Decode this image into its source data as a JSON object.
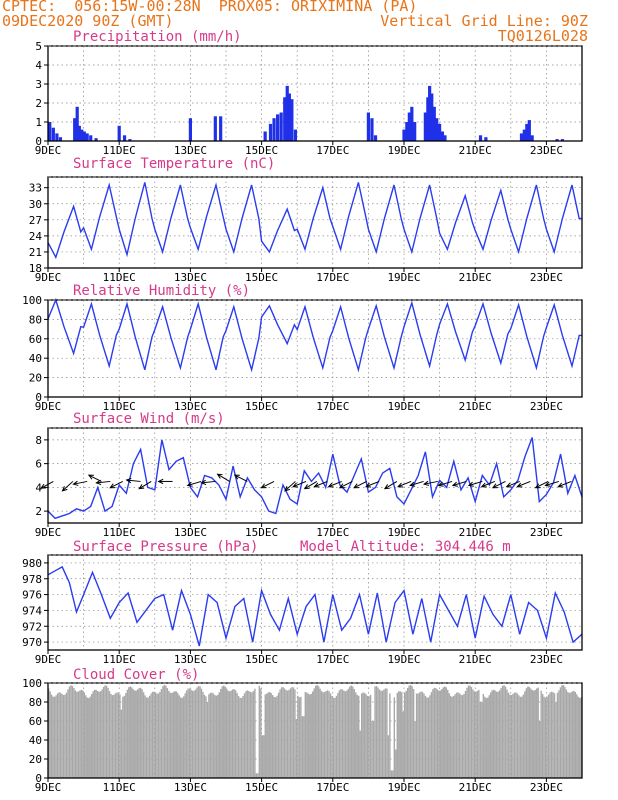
{
  "header": {
    "left_line1": "CPTEC:  056:15W-00:28N  PROX05: ORIXIMINA (PA)",
    "left_line2": "09DEC2020 90Z (GMT)",
    "right_line2": "Vertical Grid Line: 90Z",
    "right_line3": "TQ0126L028"
  },
  "colors": {
    "header": "#e8741a",
    "title": "#d63a8a",
    "line": "#2a3cf0",
    "bar": "#2030e8",
    "cloud": "#a8a8a8"
  },
  "x_ticks": [
    "9DEC",
    "11DEC",
    "13DEC",
    "15DEC",
    "17DEC",
    "19DEC",
    "21DEC",
    "23DEC"
  ],
  "chart_data": [
    {
      "type": "bar",
      "title": "Precipitation (mm/h)",
      "unit": "mm/h",
      "xlim": [
        9,
        24
      ],
      "ylim": [
        0,
        5
      ],
      "yticks": [
        "0",
        "1",
        "2",
        "3",
        "4",
        "5"
      ],
      "x": [
        9.05,
        9.15,
        9.25,
        9.35,
        9.75,
        9.82,
        9.88,
        9.95,
        10.02,
        10.1,
        10.2,
        10.35,
        11.0,
        11.15,
        11.3,
        13.0,
        13.7,
        13.85,
        15.1,
        15.25,
        15.35,
        15.45,
        15.55,
        15.65,
        15.72,
        15.78,
        15.85,
        15.95,
        18.0,
        18.1,
        18.2,
        19.0,
        19.08,
        19.15,
        19.22,
        19.3,
        19.6,
        19.67,
        19.72,
        19.78,
        19.85,
        19.92,
        20.0,
        20.08,
        20.15,
        21.15,
        21.3,
        22.3,
        22.38,
        22.45,
        22.52,
        22.6,
        23.3,
        23.45
      ],
      "values": [
        1.0,
        0.7,
        0.4,
        0.2,
        1.2,
        1.8,
        0.8,
        0.6,
        0.5,
        0.4,
        0.3,
        0.15,
        0.8,
        0.3,
        0.1,
        1.2,
        1.3,
        1.3,
        0.5,
        0.9,
        1.2,
        1.4,
        1.5,
        2.3,
        2.9,
        2.5,
        2.2,
        0.6,
        1.5,
        1.2,
        0.3,
        0.6,
        1.0,
        1.5,
        1.8,
        1.0,
        1.5,
        2.3,
        2.9,
        2.5,
        1.8,
        1.2,
        0.9,
        0.5,
        0.3,
        0.3,
        0.2,
        0.4,
        0.6,
        0.9,
        1.1,
        0.3,
        0.1,
        0.1
      ]
    },
    {
      "type": "line",
      "title": "Surface Temperature (nC)",
      "unit": "nC",
      "xlim": [
        9,
        24
      ],
      "ylim": [
        18,
        35
      ],
      "yticks": [
        "18",
        "21",
        "24",
        "27",
        "30",
        "33"
      ],
      "diurnal": [
        {
          "min": 20.0,
          "max": 29.5
        },
        {
          "min": 21.5,
          "max": 33.5
        },
        {
          "min": 20.5,
          "max": 34.0
        },
        {
          "min": 21.0,
          "max": 33.5
        },
        {
          "min": 21.5,
          "max": 33.5
        },
        {
          "min": 21.0,
          "max": 33.5
        },
        {
          "min": 21.0,
          "max": 29.0
        },
        {
          "min": 21.5,
          "max": 33.0
        },
        {
          "min": 21.5,
          "max": 34.0
        },
        {
          "min": 21.0,
          "max": 33.5
        },
        {
          "min": 21.0,
          "max": 33.5
        },
        {
          "min": 21.5,
          "max": 31.5
        },
        {
          "min": 21.5,
          "max": 32.5
        },
        {
          "min": 21.0,
          "max": 33.5
        },
        {
          "min": 21.0,
          "max": 33.5
        }
      ]
    },
    {
      "type": "line",
      "title": "Relative Humidity (%)",
      "unit": "%",
      "xlim": [
        9,
        24
      ],
      "ylim": [
        0,
        100
      ],
      "yticks": [
        "0",
        "20",
        "40",
        "60",
        "80",
        "100"
      ],
      "diurnal": [
        {
          "min": 45,
          "max": 100
        },
        {
          "min": 32,
          "max": 96
        },
        {
          "min": 28,
          "max": 96
        },
        {
          "min": 30,
          "max": 93
        },
        {
          "min": 28,
          "max": 96
        },
        {
          "min": 28,
          "max": 93
        },
        {
          "min": 55,
          "max": 94
        },
        {
          "min": 30,
          "max": 93
        },
        {
          "min": 28,
          "max": 93
        },
        {
          "min": 30,
          "max": 94
        },
        {
          "min": 32,
          "max": 97
        },
        {
          "min": 38,
          "max": 96
        },
        {
          "min": 35,
          "max": 96
        },
        {
          "min": 30,
          "max": 95
        },
        {
          "min": 32,
          "max": 95
        }
      ]
    },
    {
      "type": "line",
      "title": "Surface Wind (m/s)",
      "unit": "m/s",
      "xlim": [
        9,
        24
      ],
      "ylim": [
        1,
        9
      ],
      "yticks": [
        "2",
        "4",
        "6",
        "8"
      ],
      "x": [
        9.0,
        9.2,
        9.4,
        9.6,
        9.8,
        10.0,
        10.2,
        10.4,
        10.6,
        10.8,
        11.0,
        11.2,
        11.4,
        11.6,
        11.8,
        12.0,
        12.2,
        12.4,
        12.6,
        12.8,
        13.0,
        13.2,
        13.4,
        13.6,
        13.8,
        14.0,
        14.2,
        14.4,
        14.6,
        14.8,
        15.0,
        15.2,
        15.4,
        15.6,
        15.8,
        16.0,
        16.2,
        16.4,
        16.6,
        16.8,
        17.0,
        17.2,
        17.4,
        17.6,
        17.8,
        18.0,
        18.2,
        18.4,
        18.6,
        18.8,
        19.0,
        19.2,
        19.4,
        19.6,
        19.8,
        20.0,
        20.2,
        20.4,
        20.6,
        20.8,
        21.0,
        21.2,
        21.4,
        21.6,
        21.8,
        22.0,
        22.2,
        22.4,
        22.6,
        22.8,
        23.0,
        23.2,
        23.4,
        23.6,
        23.8,
        24.0
      ],
      "values": [
        2.0,
        1.4,
        1.6,
        1.8,
        2.2,
        2.0,
        2.4,
        4.0,
        2.0,
        2.4,
        4.2,
        3.5,
        6.0,
        7.2,
        4.0,
        3.8,
        8.0,
        5.5,
        6.2,
        6.5,
        4.0,
        3.2,
        5.0,
        4.8,
        4.2,
        3.0,
        5.8,
        3.2,
        4.8,
        3.8,
        3.2,
        2.0,
        1.8,
        4.2,
        3.0,
        2.6,
        5.4,
        4.5,
        5.2,
        4.0,
        6.8,
        4.2,
        3.6,
        5.0,
        6.4,
        3.6,
        4.0,
        5.2,
        5.6,
        3.2,
        2.6,
        3.8,
        5.0,
        7.0,
        3.2,
        4.6,
        4.0,
        6.2,
        3.8,
        4.8,
        2.8,
        5.0,
        4.2,
        6.0,
        3.2,
        3.8,
        4.6,
        6.6,
        8.2,
        2.8,
        3.4,
        4.4,
        6.8,
        3.5,
        5.0,
        3.2
      ],
      "arrows": [
        {
          "x": 9.15,
          "dir": [
            -1,
            -0.55
          ]
        },
        {
          "x": 9.7,
          "dir": [
            -1,
            -0.9
          ]
        },
        {
          "x": 10.1,
          "dir": [
            -1,
            -0.2
          ]
        },
        {
          "x": 10.5,
          "dir": [
            -1,
            0.5
          ]
        },
        {
          "x": 10.75,
          "dir": [
            -1,
            -0.1
          ]
        },
        {
          "x": 11.1,
          "dir": [
            -1,
            -0.5
          ]
        },
        {
          "x": 11.6,
          "dir": [
            -1,
            0.1
          ]
        },
        {
          "x": 11.9,
          "dir": [
            -1,
            -0.6
          ]
        },
        {
          "x": 12.5,
          "dir": [
            -1,
            0.0
          ]
        },
        {
          "x": 13.3,
          "dir": [
            -1,
            -0.3
          ]
        },
        {
          "x": 13.7,
          "dir": [
            -1,
            -0.1
          ]
        },
        {
          "x": 14.1,
          "dir": [
            -1,
            0.6
          ]
        },
        {
          "x": 14.6,
          "dir": [
            -1,
            0.5
          ]
        },
        {
          "x": 15.35,
          "dir": [
            -1,
            -0.5
          ]
        },
        {
          "x": 15.95,
          "dir": [
            -1,
            -0.9
          ]
        },
        {
          "x": 16.25,
          "dir": [
            -1,
            -0.4
          ]
        },
        {
          "x": 16.55,
          "dir": [
            -1,
            -0.6
          ]
        },
        {
          "x": 16.85,
          "dir": [
            -1,
            -0.4
          ]
        },
        {
          "x": 17.25,
          "dir": [
            -1,
            -0.4
          ]
        },
        {
          "x": 17.55,
          "dir": [
            -1,
            -0.5
          ]
        },
        {
          "x": 17.95,
          "dir": [
            -1,
            -0.5
          ]
        },
        {
          "x": 18.3,
          "dir": [
            -1,
            -0.4
          ]
        },
        {
          "x": 18.8,
          "dir": [
            -1,
            -0.6
          ]
        },
        {
          "x": 19.2,
          "dir": [
            -1,
            -0.4
          ]
        },
        {
          "x": 19.55,
          "dir": [
            -1,
            -0.3
          ]
        },
        {
          "x": 19.95,
          "dir": [
            -1,
            -0.2
          ]
        },
        {
          "x": 20.35,
          "dir": [
            -1,
            -0.3
          ]
        },
        {
          "x": 20.75,
          "dir": [
            -1,
            -0.3
          ]
        },
        {
          "x": 21.2,
          "dir": [
            -1,
            -0.3
          ]
        },
        {
          "x": 21.55,
          "dir": [
            -1,
            -0.4
          ]
        },
        {
          "x": 21.85,
          "dir": [
            -1,
            -0.5
          ]
        },
        {
          "x": 22.25,
          "dir": [
            -1,
            -0.4
          ]
        },
        {
          "x": 22.55,
          "dir": [
            -1,
            -0.4
          ]
        },
        {
          "x": 23.05,
          "dir": [
            -1,
            -0.5
          ]
        },
        {
          "x": 23.35,
          "dir": [
            -1,
            -0.3
          ]
        },
        {
          "x": 23.7,
          "dir": [
            -1,
            -0.4
          ]
        }
      ]
    },
    {
      "type": "line",
      "title": "Surface Pressure (hPa)",
      "annotation": "Model Altitude: 304.446 m",
      "unit": "hPa",
      "xlim": [
        9,
        24
      ],
      "ylim": [
        969,
        981
      ],
      "yticks": [
        "970",
        "972",
        "974",
        "976",
        "978",
        "980"
      ],
      "x": [
        9.0,
        9.2,
        9.4,
        9.6,
        9.8,
        10.0,
        10.25,
        10.5,
        10.75,
        11.0,
        11.25,
        11.5,
        11.75,
        12.0,
        12.25,
        12.5,
        12.75,
        13.0,
        13.25,
        13.5,
        13.75,
        14.0,
        14.25,
        14.5,
        14.75,
        15.0,
        15.25,
        15.5,
        15.75,
        16.0,
        16.25,
        16.5,
        16.75,
        17.0,
        17.25,
        17.5,
        17.75,
        18.0,
        18.25,
        18.5,
        18.75,
        19.0,
        19.25,
        19.5,
        19.75,
        20.0,
        20.25,
        20.5,
        20.75,
        21.0,
        21.25,
        21.5,
        21.75,
        22.0,
        22.25,
        22.5,
        22.75,
        23.0,
        23.25,
        23.5,
        23.75,
        24.0
      ],
      "values": [
        978.5,
        979.0,
        979.5,
        977.5,
        973.8,
        976.0,
        978.8,
        976.0,
        973.0,
        975.0,
        976.2,
        972.5,
        974.0,
        975.5,
        976.0,
        971.5,
        976.5,
        973.5,
        969.5,
        976.0,
        975.0,
        970.5,
        974.5,
        975.5,
        970.0,
        976.5,
        973.5,
        971.5,
        975.5,
        971.0,
        974.5,
        976.0,
        970.0,
        976.0,
        971.5,
        973.0,
        976.0,
        971.0,
        976.2,
        970.0,
        975.0,
        976.5,
        971.0,
        975.5,
        970.0,
        976.0,
        974.0,
        972.0,
        976.0,
        970.5,
        975.8,
        973.5,
        972.0,
        976.0,
        971.0,
        975.0,
        974.0,
        970.5,
        976.2,
        973.8,
        970.0,
        971.0
      ]
    },
    {
      "type": "bar",
      "title": "Cloud Cover (%)",
      "unit": "%",
      "xlim": [
        9,
        24
      ],
      "ylim": [
        0,
        100
      ],
      "yticks": [
        "0",
        "20",
        "40",
        "60",
        "80",
        "100"
      ],
      "base_level": 91,
      "dips": [
        {
          "x": 14.85,
          "value": 5
        },
        {
          "x": 15.02,
          "value": 45
        },
        {
          "x": 11.05,
          "value": 72
        },
        {
          "x": 13.45,
          "value": 80
        },
        {
          "x": 15.95,
          "value": 62
        },
        {
          "x": 16.15,
          "value": 65
        },
        {
          "x": 17.75,
          "value": 50
        },
        {
          "x": 18.1,
          "value": 60
        },
        {
          "x": 18.55,
          "value": 45
        },
        {
          "x": 18.65,
          "value": 8
        },
        {
          "x": 18.75,
          "value": 30
        },
        {
          "x": 18.95,
          "value": 70
        },
        {
          "x": 19.3,
          "value": 60
        },
        {
          "x": 21.15,
          "value": 80
        },
        {
          "x": 22.8,
          "value": 60
        },
        {
          "x": 23.25,
          "value": 80
        }
      ]
    }
  ]
}
